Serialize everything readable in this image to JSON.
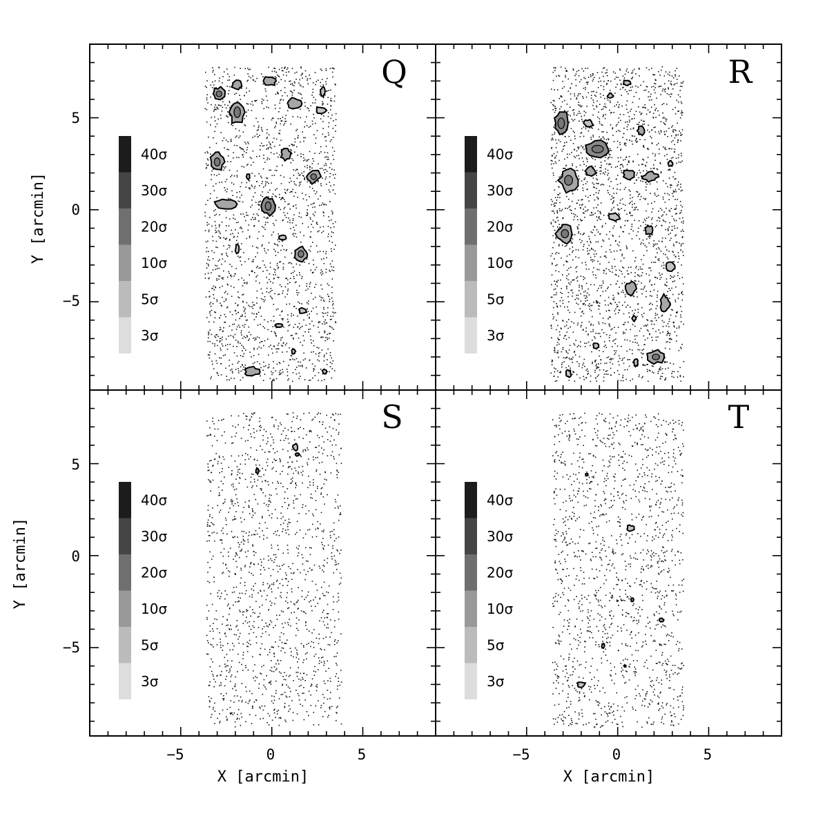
{
  "chart_data": {
    "type": "scatter",
    "panels": [
      {
        "label": "Q",
        "field_x": [
          -3.7,
          3.5
        ],
        "field_y": [
          -9.3,
          7.8
        ],
        "clumps": [
          {
            "x": -2.9,
            "y": 6.3,
            "sx": 0.35,
            "sy": 0.35,
            "level": 10
          },
          {
            "x": -1.9,
            "y": 5.3,
            "sx": 0.4,
            "sy": 0.65,
            "level": 10
          },
          {
            "x": -1.9,
            "y": 6.8,
            "sx": 0.3,
            "sy": 0.25,
            "level": 10
          },
          {
            "x": -0.1,
            "y": 7.0,
            "sx": 0.35,
            "sy": 0.25,
            "level": 10
          },
          {
            "x": 1.2,
            "y": 5.8,
            "sx": 0.4,
            "sy": 0.3,
            "level": 10
          },
          {
            "x": 2.7,
            "y": 5.4,
            "sx": 0.3,
            "sy": 0.2,
            "level": 5
          },
          {
            "x": 2.8,
            "y": 6.4,
            "sx": 0.12,
            "sy": 0.25,
            "level": 5
          },
          {
            "x": -3.0,
            "y": 2.6,
            "sx": 0.35,
            "sy": 0.5,
            "level": 10
          },
          {
            "x": 0.8,
            "y": 3.0,
            "sx": 0.3,
            "sy": 0.3,
            "level": 10
          },
          {
            "x": 2.3,
            "y": 1.8,
            "sx": 0.35,
            "sy": 0.35,
            "level": 10
          },
          {
            "x": -2.6,
            "y": 0.3,
            "sx": 0.6,
            "sy": 0.3,
            "level": 10
          },
          {
            "x": -0.2,
            "y": 0.2,
            "sx": 0.35,
            "sy": 0.5,
            "level": 20
          },
          {
            "x": 1.6,
            "y": -2.4,
            "sx": 0.35,
            "sy": 0.4,
            "level": 10
          },
          {
            "x": -1.9,
            "y": -2.1,
            "sx": 0.1,
            "sy": 0.25,
            "level": 5
          },
          {
            "x": 0.6,
            "y": -1.5,
            "sx": 0.2,
            "sy": 0.12,
            "level": 5
          },
          {
            "x": -1.3,
            "y": 1.8,
            "sx": 0.1,
            "sy": 0.15,
            "level": 5
          },
          {
            "x": 1.7,
            "y": -5.5,
            "sx": 0.22,
            "sy": 0.15,
            "level": 5
          },
          {
            "x": 0.4,
            "y": -6.3,
            "sx": 0.2,
            "sy": 0.1,
            "level": 5
          },
          {
            "x": -1.1,
            "y": -8.8,
            "sx": 0.4,
            "sy": 0.25,
            "level": 10
          },
          {
            "x": 2.9,
            "y": -8.8,
            "sx": 0.12,
            "sy": 0.12,
            "level": 5
          },
          {
            "x": 1.2,
            "y": -7.7,
            "sx": 0.1,
            "sy": 0.15,
            "level": 5
          }
        ]
      },
      {
        "label": "R",
        "field_x": [
          -3.7,
          3.6
        ],
        "field_y": [
          -9.3,
          7.8
        ],
        "clumps": [
          {
            "x": -3.1,
            "y": 4.7,
            "sx": 0.4,
            "sy": 0.65,
            "level": 20
          },
          {
            "x": -1.1,
            "y": 3.3,
            "sx": 0.7,
            "sy": 0.45,
            "level": 20
          },
          {
            "x": -2.7,
            "y": 1.6,
            "sx": 0.5,
            "sy": 0.6,
            "level": 10
          },
          {
            "x": -1.5,
            "y": 2.1,
            "sx": 0.3,
            "sy": 0.25,
            "level": 10
          },
          {
            "x": 0.6,
            "y": 1.9,
            "sx": 0.3,
            "sy": 0.25,
            "level": 10
          },
          {
            "x": 1.8,
            "y": 1.8,
            "sx": 0.4,
            "sy": 0.25,
            "level": 10
          },
          {
            "x": 1.3,
            "y": 4.3,
            "sx": 0.2,
            "sy": 0.25,
            "level": 10
          },
          {
            "x": -1.6,
            "y": 4.7,
            "sx": 0.25,
            "sy": 0.2,
            "level": 5
          },
          {
            "x": 2.9,
            "y": 2.5,
            "sx": 0.12,
            "sy": 0.15,
            "level": 5
          },
          {
            "x": -2.9,
            "y": -1.3,
            "sx": 0.45,
            "sy": 0.5,
            "level": 10
          },
          {
            "x": -0.2,
            "y": -0.4,
            "sx": 0.3,
            "sy": 0.2,
            "level": 5
          },
          {
            "x": 1.7,
            "y": -1.1,
            "sx": 0.2,
            "sy": 0.25,
            "level": 10
          },
          {
            "x": 2.9,
            "y": -3.1,
            "sx": 0.3,
            "sy": 0.25,
            "level": 5
          },
          {
            "x": 0.7,
            "y": -4.3,
            "sx": 0.3,
            "sy": 0.35,
            "level": 10
          },
          {
            "x": 2.6,
            "y": -5.1,
            "sx": 0.25,
            "sy": 0.45,
            "level": 10
          },
          {
            "x": 2.1,
            "y": -8.0,
            "sx": 0.45,
            "sy": 0.35,
            "level": 10
          },
          {
            "x": 1.0,
            "y": -8.3,
            "sx": 0.12,
            "sy": 0.2,
            "level": 5
          },
          {
            "x": -1.2,
            "y": -7.4,
            "sx": 0.15,
            "sy": 0.15,
            "level": 5
          },
          {
            "x": -2.7,
            "y": -8.9,
            "sx": 0.15,
            "sy": 0.2,
            "level": 5
          },
          {
            "x": 0.5,
            "y": 6.9,
            "sx": 0.2,
            "sy": 0.15,
            "level": 5
          },
          {
            "x": -0.4,
            "y": 6.2,
            "sx": 0.15,
            "sy": 0.12,
            "level": 5
          },
          {
            "x": 0.9,
            "y": -5.9,
            "sx": 0.1,
            "sy": 0.15,
            "level": 5
          }
        ]
      },
      {
        "label": "S",
        "field_x": [
          -3.6,
          3.8
        ],
        "field_y": [
          -9.3,
          7.8
        ],
        "clumps": [
          {
            "x": 1.3,
            "y": 5.9,
            "sx": 0.13,
            "sy": 0.18,
            "level": 5
          },
          {
            "x": 1.4,
            "y": 5.5,
            "sx": 0.12,
            "sy": 0.08,
            "level": 20
          },
          {
            "x": -0.8,
            "y": 4.6,
            "sx": 0.08,
            "sy": 0.15,
            "level": 20
          }
        ]
      },
      {
        "label": "T",
        "field_x": [
          -3.6,
          3.6
        ],
        "field_y": [
          -9.3,
          7.8
        ],
        "clumps": [
          {
            "x": 0.7,
            "y": 1.5,
            "sx": 0.2,
            "sy": 0.15,
            "level": 5
          },
          {
            "x": -2.0,
            "y": -7.0,
            "sx": 0.22,
            "sy": 0.15,
            "level": 5
          },
          {
            "x": -0.8,
            "y": -4.9,
            "sx": 0.08,
            "sy": 0.12,
            "level": 5
          },
          {
            "x": 2.4,
            "y": -3.5,
            "sx": 0.12,
            "sy": 0.1,
            "level": 5
          },
          {
            "x": 0.8,
            "y": -2.4,
            "sx": 0.08,
            "sy": 0.1,
            "level": 10
          },
          {
            "x": 0.4,
            "y": -6.0,
            "sx": 0.06,
            "sy": 0.06,
            "level": 10
          },
          {
            "x": -1.7,
            "y": 4.4,
            "sx": 0.07,
            "sy": 0.07,
            "level": 3
          }
        ]
      }
    ],
    "colorbar": {
      "labels": [
        "3σ",
        "5σ",
        "10σ",
        "20σ",
        "30σ",
        "40σ"
      ],
      "colors": [
        "#dddddd",
        "#bbbbbb",
        "#999999",
        "#6f6f6f",
        "#454545",
        "#1c1c1c"
      ]
    },
    "x_ticks": [
      "−5",
      "0",
      "5"
    ],
    "y_ticks": [
      "5",
      "0",
      "−5"
    ],
    "xlabel": "X [arcmin]",
    "ylabel": "Y [arcmin]",
    "xlim": [
      -10,
      9
    ],
    "ylim": [
      -9.8,
      9
    ]
  }
}
